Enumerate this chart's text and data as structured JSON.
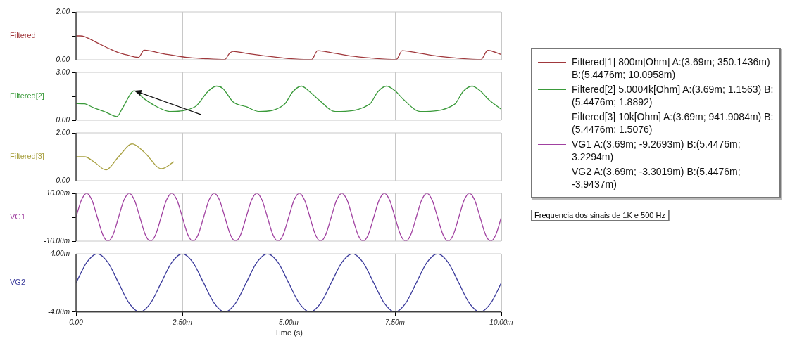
{
  "chart_data": [
    {
      "type": "line",
      "ylabel": "Filtered",
      "xlim": [
        0,
        10
      ],
      "xticks": [
        0,
        2.5,
        5,
        7.5,
        10
      ],
      "ylim": [
        0,
        2
      ],
      "yticks": [
        {
          "value": 0,
          "label": "0.00"
        },
        {
          "value": 1,
          "label": null
        },
        {
          "value": 2,
          "label": "2.00"
        }
      ],
      "grid": "x",
      "tick_labels": "y",
      "legend": "right",
      "series": [
        {
          "name": "Filtered[1]  800m[Ohm] A:(3.69m; 350.1436m) B:(5.4476m; 10.0958m)",
          "color": "#a0383c",
          "x": [
            0,
            0.1,
            0.2,
            0.4,
            0.6,
            0.8,
            1.0,
            1.2,
            1.47,
            1.6,
            1.8,
            2.0,
            2.3,
            2.6,
            3.0,
            3.5,
            3.6,
            3.69,
            4.0,
            4.5,
            5.0,
            5.45,
            5.54,
            5.68,
            6.0,
            6.5,
            7.0,
            7.53,
            7.67,
            8.0,
            8.5,
            9.0,
            9.52,
            9.68,
            10
          ],
          "values": [
            1.0,
            1.0,
            0.97,
            0.8,
            0.62,
            0.45,
            0.3,
            0.2,
            0.1,
            0.4,
            0.35,
            0.27,
            0.18,
            0.1,
            0.05,
            0.01,
            0.25,
            0.35,
            0.27,
            0.15,
            0.05,
            0.01,
            0.01,
            0.38,
            0.3,
            0.15,
            0.06,
            0.01,
            0.38,
            0.3,
            0.15,
            0.06,
            0.01,
            0.39,
            0.22
          ]
        }
      ]
    },
    {
      "type": "line",
      "ylabel": "Filtered[2]",
      "xlim": [
        0,
        10
      ],
      "xticks": [
        0,
        2.5,
        5,
        7.5,
        10
      ],
      "ylim": [
        0,
        3
      ],
      "yticks": [
        {
          "value": 0,
          "label": "0.00"
        },
        {
          "value": 1.5,
          "label": null
        },
        {
          "value": 3,
          "label": "3.00"
        }
      ],
      "grid": "x",
      "tick_labels": "y",
      "legend": "right",
      "series": [
        {
          "name": "Filtered[2]  5.0004k[Ohm] A:(3.69m; 1.1563) B:(5.4476m; 1.8892)",
          "color": "#3a9a3a",
          "x": [
            0,
            0.2,
            0.4,
            0.7,
            0.96,
            1.1,
            1.37,
            1.6,
            1.9,
            2.2,
            2.8,
            3.1,
            3.3,
            3.45,
            3.69,
            4.0,
            4.3,
            4.9,
            5.1,
            5.3,
            5.45,
            5.7,
            6.1,
            6.9,
            7.1,
            7.3,
            7.5,
            7.7,
            8.1,
            8.9,
            9.1,
            9.31,
            9.5,
            9.7,
            10
          ],
          "values": [
            1.05,
            1.03,
            0.8,
            0.5,
            0.23,
            0.8,
            1.85,
            1.35,
            0.85,
            0.55,
            0.85,
            1.8,
            2.14,
            2.0,
            1.16,
            0.85,
            0.55,
            1.0,
            1.8,
            2.14,
            1.89,
            1.3,
            0.54,
            1.0,
            1.8,
            2.14,
            1.85,
            1.3,
            0.54,
            1.0,
            1.8,
            2.14,
            1.85,
            1.3,
            0.68
          ]
        }
      ]
    },
    {
      "type": "line",
      "ylabel": "Filtered[3]",
      "xlim": [
        0,
        10
      ],
      "xticks": [
        0,
        2.5,
        5,
        7.5,
        10
      ],
      "ylim": [
        0,
        2
      ],
      "yticks": [
        {
          "value": 0,
          "label": "0.00"
        },
        {
          "value": 1,
          "label": null
        },
        {
          "value": 2,
          "label": "2.00"
        }
      ],
      "grid": "x",
      "tick_labels": "y",
      "legend": "right",
      "series": [
        {
          "name": "Filtered[3]  10k[Ohm] A:(3.69m; 941.9084m) B:(5.4476m; 1.5076)",
          "color": "#a8a040",
          "x": [
            0,
            0.2,
            0.45,
            0.7,
            1.0,
            1.32,
            1.6,
            2.01,
            2.3
          ],
          "values": [
            1.0,
            1.0,
            0.75,
            0.45,
            1.0,
            1.54,
            1.2,
            0.5,
            0.79
          ]
        }
      ]
    },
    {
      "type": "line",
      "ylabel": "VG1",
      "xlim": [
        0,
        10
      ],
      "xticks": [
        0,
        2.5,
        5,
        7.5,
        10
      ],
      "ylim": [
        -10,
        10
      ],
      "yticks": [
        {
          "value": -10,
          "label": "-10.00m"
        },
        {
          "value": 0,
          "label": null
        },
        {
          "value": 10,
          "label": "10.00m"
        }
      ],
      "grid": "x",
      "tick_labels": "y",
      "legend": "right",
      "series": [
        {
          "name": "VG1   A:(3.69m; -9.2693m) B:(5.4476m; 3.2294m)",
          "color": "#a040a0",
          "x": [
            0,
            0.125,
            0.25,
            0.375,
            0.5,
            0.625,
            0.75,
            0.875,
            1,
            1.125,
            1.25,
            1.375,
            1.5,
            1.625,
            1.75,
            1.875,
            2,
            2.125,
            2.25,
            2.375,
            2.5,
            2.625,
            2.75,
            2.875,
            3,
            3.125,
            3.25,
            3.375,
            3.5,
            3.625,
            3.75,
            3.875,
            4,
            4.125,
            4.25,
            4.375,
            4.5,
            4.625,
            4.75,
            4.875,
            5,
            5.125,
            5.25,
            5.375,
            5.5,
            5.625,
            5.75,
            5.875,
            6,
            6.125,
            6.25,
            6.375,
            6.5,
            6.625,
            6.75,
            6.875,
            7,
            7.125,
            7.25,
            7.375,
            7.5,
            7.625,
            7.75,
            7.875,
            8,
            8.125,
            8.25,
            8.375,
            8.5,
            8.625,
            8.75,
            8.875,
            9,
            9.125,
            9.25,
            9.375,
            9.5,
            9.625,
            9.75,
            9.875,
            10
          ],
          "values": [
            0,
            7.1,
            10,
            7.1,
            0,
            -7.1,
            -10,
            -7.1,
            0,
            7.1,
            10,
            7.1,
            0,
            -7.1,
            -10,
            -7.1,
            0,
            7.1,
            10,
            7.1,
            0,
            -7.1,
            -10,
            -7.1,
            0,
            7.1,
            10,
            7.1,
            0,
            -7.1,
            -10,
            -7.1,
            0,
            7.1,
            10,
            7.1,
            0,
            -7.1,
            -10,
            -7.1,
            0,
            7.1,
            10,
            7.1,
            0,
            -7.1,
            -10,
            -7.1,
            0,
            7.1,
            10,
            7.1,
            0,
            -7.1,
            -10,
            -7.1,
            0,
            7.1,
            10,
            7.1,
            0,
            -7.1,
            -10,
            -7.1,
            0,
            7.1,
            10,
            7.1,
            0,
            -7.1,
            -10,
            -7.1,
            0,
            7.1,
            10,
            7.1,
            0,
            -7.1,
            -10,
            -7.1,
            0
          ]
        }
      ]
    },
    {
      "type": "line",
      "ylabel": "VG2",
      "xlabel": "Time (s)",
      "xlim": [
        0,
        10
      ],
      "xticks": [
        {
          "value": 0,
          "label": "0.00"
        },
        {
          "value": 2.5,
          "label": "2.50m"
        },
        {
          "value": 5,
          "label": "5.00m"
        },
        {
          "value": 7.5,
          "label": "7.50m"
        },
        {
          "value": 10,
          "label": "10.00m"
        }
      ],
      "ylim": [
        -4,
        4
      ],
      "yticks": [
        {
          "value": -4,
          "label": "-4.00m"
        },
        {
          "value": 0,
          "label": null
        },
        {
          "value": 4,
          "label": "4.00m"
        }
      ],
      "grid": "x",
      "legend": "right",
      "annotations": [
        "Frequencia dos sinais de 1K e 500 Hz"
      ],
      "series": [
        {
          "name": "VG2   A:(3.69m; -3.3019m) B:(5.4476m; -3.9437m)",
          "color": "#3c3c9c",
          "x": [
            0,
            0.25,
            0.5,
            0.75,
            1,
            1.25,
            1.5,
            1.75,
            2,
            2.25,
            2.5,
            2.75,
            3,
            3.25,
            3.5,
            3.75,
            4,
            4.25,
            4.5,
            4.75,
            5,
            5.25,
            5.5,
            5.75,
            6,
            6.25,
            6.5,
            6.75,
            7,
            7.25,
            7.5,
            7.75,
            8,
            8.25,
            8.5,
            8.75,
            9,
            9.25,
            9.5,
            9.75,
            10
          ],
          "values": [
            0,
            2.8,
            4,
            2.8,
            0,
            -2.8,
            -4,
            -2.8,
            0,
            2.8,
            4,
            2.8,
            0,
            -2.8,
            -4,
            -2.8,
            0,
            2.8,
            4,
            2.8,
            0,
            -2.8,
            -4,
            -2.8,
            0,
            2.8,
            4,
            2.8,
            0,
            -2.8,
            -4,
            -2.8,
            0,
            2.8,
            4,
            2.8,
            0,
            -2.8,
            -4,
            -2.8,
            0
          ]
        }
      ]
    }
  ]
}
